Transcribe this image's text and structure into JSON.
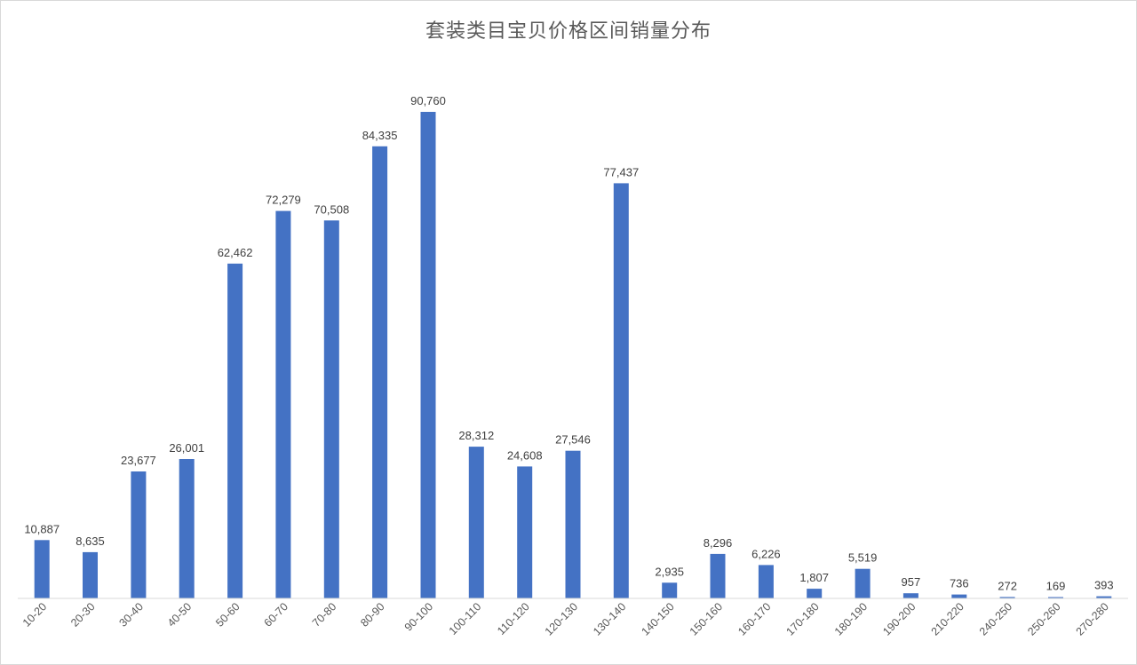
{
  "chart_data": {
    "type": "bar",
    "title": "套装类目宝贝价格区间销量分布",
    "xlabel": "",
    "ylabel": "",
    "ylim": [
      0,
      100000
    ],
    "grid": false,
    "legend": "none",
    "bar_color": "#4472c4",
    "categories": [
      "10-20",
      "20-30",
      "30-40",
      "40-50",
      "50-60",
      "60-70",
      "70-80",
      "80-90",
      "90-100",
      "100-110",
      "110-120",
      "120-130",
      "130-140",
      "140-150",
      "150-160",
      "160-170",
      "170-180",
      "180-190",
      "190-200",
      "210-220",
      "240-250",
      "250-260",
      "270-280"
    ],
    "values": [
      10887,
      8635,
      23677,
      26001,
      62462,
      72279,
      70508,
      84335,
      90760,
      28312,
      24608,
      27546,
      77437,
      2935,
      8296,
      6226,
      1807,
      5519,
      957,
      736,
      272,
      169,
      393
    ],
    "data_labels": [
      "10,887",
      "8,635",
      "23,677",
      "26,001",
      "62,462",
      "72,279",
      "70,508",
      "84,335",
      "90,760",
      "28,312",
      "24,608",
      "27,546",
      "77,437",
      "2,935",
      "8,296",
      "6,226",
      "1,807",
      "5,519",
      "957",
      "736",
      "272",
      "169",
      "393"
    ]
  }
}
